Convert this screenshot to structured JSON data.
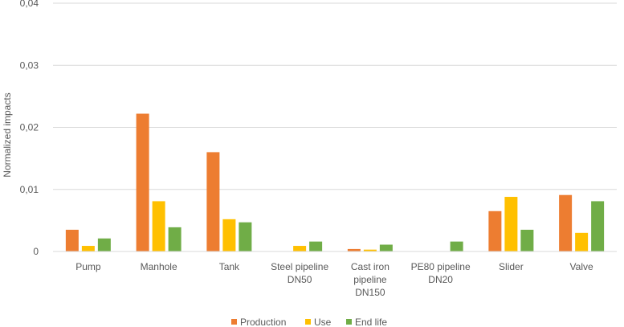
{
  "chart_data": {
    "type": "bar",
    "title": "",
    "xlabel": "",
    "ylabel": "Normalized impacts",
    "ylim": [
      0,
      0.04
    ],
    "yticks": [
      {
        "value": 0,
        "label": "0"
      },
      {
        "value": 0.01,
        "label": "0,01"
      },
      {
        "value": 0.02,
        "label": "0,02"
      },
      {
        "value": 0.03,
        "label": "0,03"
      },
      {
        "value": 0.04,
        "label": "0,04"
      }
    ],
    "grid": true,
    "legend": "bottom",
    "categories": [
      [
        "Pump"
      ],
      [
        "Manhole"
      ],
      [
        "Tank"
      ],
      [
        "Steel pipeline",
        "DN50"
      ],
      [
        "Cast iron",
        "pipeline",
        "DN150"
      ],
      [
        "PE80 pipeline",
        "DN20"
      ],
      [
        "Slider"
      ],
      [
        "Valve"
      ]
    ],
    "series": [
      {
        "name": "Production",
        "color": "#ED7D31",
        "values": [
          0.0035,
          0.0222,
          0.016,
          0,
          0.0004,
          0,
          0.0065,
          0.0091
        ]
      },
      {
        "name": "Use",
        "color": "#FFC000",
        "values": [
          0.0009,
          0.0081,
          0.0052,
          0.0009,
          0.0003,
          0,
          0.0088,
          0.003
        ]
      },
      {
        "name": "End life",
        "color": "#70AD47",
        "values": [
          0.0021,
          0.0039,
          0.0047,
          0.0016,
          0.0011,
          0.0016,
          0.0035,
          0.0081
        ]
      }
    ]
  }
}
